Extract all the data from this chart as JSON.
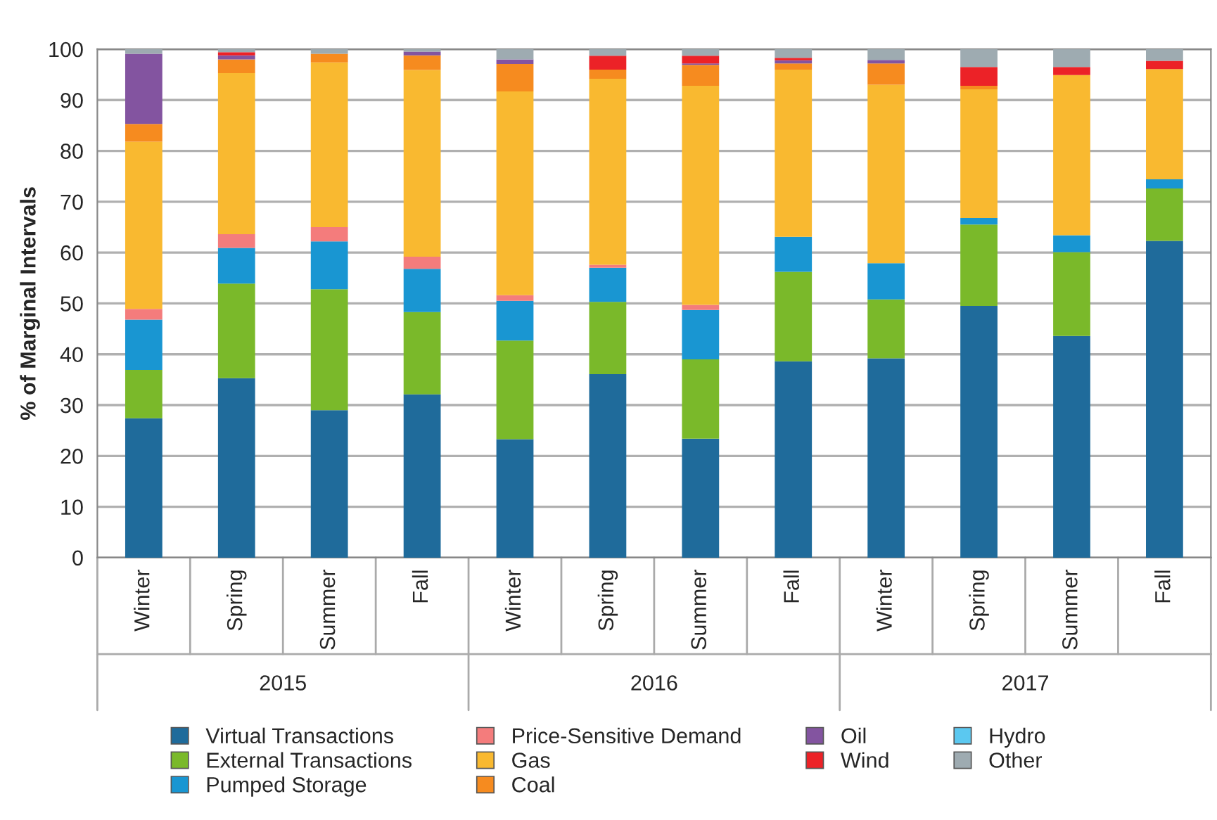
{
  "chart_data": {
    "type": "bar",
    "stacked": true,
    "ylabel": "% of Marginal Intervals",
    "categories": [
      "Winter",
      "Spring",
      "Summer",
      "Fall",
      "Winter",
      "Spring",
      "Summer",
      "Fall",
      "Winter",
      "Spring",
      "Summer",
      "Fall"
    ],
    "annotations": [
      "2015",
      "2016",
      "2017"
    ],
    "ylim": [
      0,
      100
    ],
    "yticks": [
      0,
      10,
      20,
      30,
      40,
      50,
      60,
      70,
      80,
      90,
      100
    ],
    "grid": "y",
    "legend": "bottom",
    "series": [
      {
        "name": "Virtual Transactions",
        "color": "#1f6b9b",
        "values": [
          27.4,
          35.3,
          29.0,
          32.1,
          23.3,
          36.1,
          23.4,
          38.6,
          39.2,
          49.5,
          43.6,
          62.3
        ]
      },
      {
        "name": "External Transactions",
        "color": "#7ab92a",
        "values": [
          9.5,
          18.6,
          23.8,
          16.2,
          19.4,
          14.2,
          15.6,
          17.6,
          11.6,
          16.0,
          16.5,
          10.3
        ]
      },
      {
        "name": "Pumped Storage",
        "color": "#1996d2",
        "values": [
          9.9,
          7.0,
          9.4,
          8.5,
          7.8,
          6.7,
          9.7,
          6.9,
          7.1,
          1.3,
          3.3,
          1.8
        ]
      },
      {
        "name": "Price-Sensitive Demand",
        "color": "#f47c7c",
        "values": [
          2.1,
          2.7,
          2.8,
          2.4,
          1.1,
          0.6,
          1.0,
          0,
          0,
          0,
          0,
          0
        ]
      },
      {
        "name": "Gas",
        "color": "#f9b930",
        "values": [
          32.9,
          31.7,
          32.4,
          36.7,
          40.1,
          36.6,
          43.1,
          32.9,
          35.1,
          25.3,
          31.5,
          21.7
        ]
      },
      {
        "name": "Coal",
        "color": "#f68b1f",
        "values": [
          3.5,
          2.7,
          1.7,
          2.9,
          5.4,
          1.8,
          4.1,
          1.2,
          4.2,
          0.7,
          0,
          0
        ]
      },
      {
        "name": "Oil",
        "color": "#8354a0",
        "values": [
          13.8,
          0.8,
          0,
          0.7,
          0.9,
          0,
          0.3,
          0.6,
          0.7,
          0,
          0,
          0
        ]
      },
      {
        "name": "Wind",
        "color": "#ec2227",
        "values": [
          0,
          0.6,
          0,
          0,
          0,
          2.7,
          1.5,
          0.5,
          0,
          3.7,
          1.6,
          1.6
        ]
      },
      {
        "name": "Hydro",
        "color": "#5bc8f0",
        "values": [
          0,
          0,
          0,
          0,
          0,
          0,
          0,
          0,
          0,
          0,
          0,
          0
        ]
      },
      {
        "name": "Other",
        "color": "#9eabb1",
        "values": [
          0.9,
          0.6,
          0.9,
          0.5,
          2.0,
          1.3,
          1.3,
          1.7,
          2.1,
          3.5,
          3.5,
          2.3
        ]
      }
    ]
  }
}
